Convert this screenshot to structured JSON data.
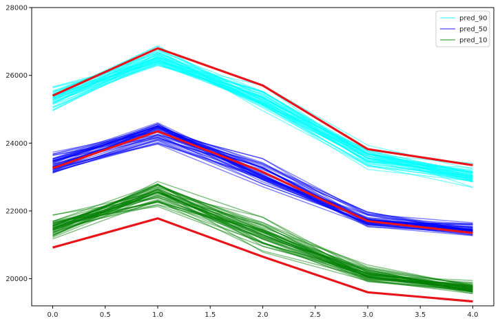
{
  "chart_data": {
    "type": "line",
    "x": [
      0.0,
      1.0,
      2.0,
      3.0,
      4.0
    ],
    "xlim": [
      -0.2,
      4.2
    ],
    "ylim": [
      19200,
      28000
    ],
    "x_ticks": [
      "0.0",
      "0.5",
      "1.0",
      "1.5",
      "2.0",
      "2.5",
      "3.0",
      "3.5",
      "4.0"
    ],
    "y_ticks": [
      "20000",
      "22000",
      "24000",
      "26000",
      "28000"
    ],
    "grid": false,
    "legend_position": "top-right",
    "series": [
      {
        "name": "pred_90",
        "color": "#00ffff",
        "center": [
          25300,
          26500,
          25300,
          23600,
          23000
        ],
        "spread": [
          350,
          380,
          380,
          330,
          330
        ],
        "count": 45
      },
      {
        "name": "pred_50",
        "color": "#0000ff",
        "center": [
          23400,
          24300,
          23100,
          21700,
          21400
        ],
        "spread": [
          380,
          420,
          420,
          280,
          240
        ],
        "count": 45
      },
      {
        "name": "pred_10",
        "color": "#008000",
        "center": [
          21500,
          22500,
          21300,
          20100,
          19700
        ],
        "spread": [
          400,
          450,
          400,
          240,
          230
        ],
        "count": 45
      }
    ],
    "highlight_lines": [
      {
        "color": "#e8141a",
        "values": [
          25400,
          26800,
          25700,
          23820,
          23350
        ]
      },
      {
        "color": "#e8141a",
        "values": [
          23260,
          24350,
          23150,
          21700,
          21350
        ]
      },
      {
        "color": "#e8141a",
        "values": [
          20920,
          21780,
          20650,
          19600,
          19330
        ]
      }
    ]
  }
}
